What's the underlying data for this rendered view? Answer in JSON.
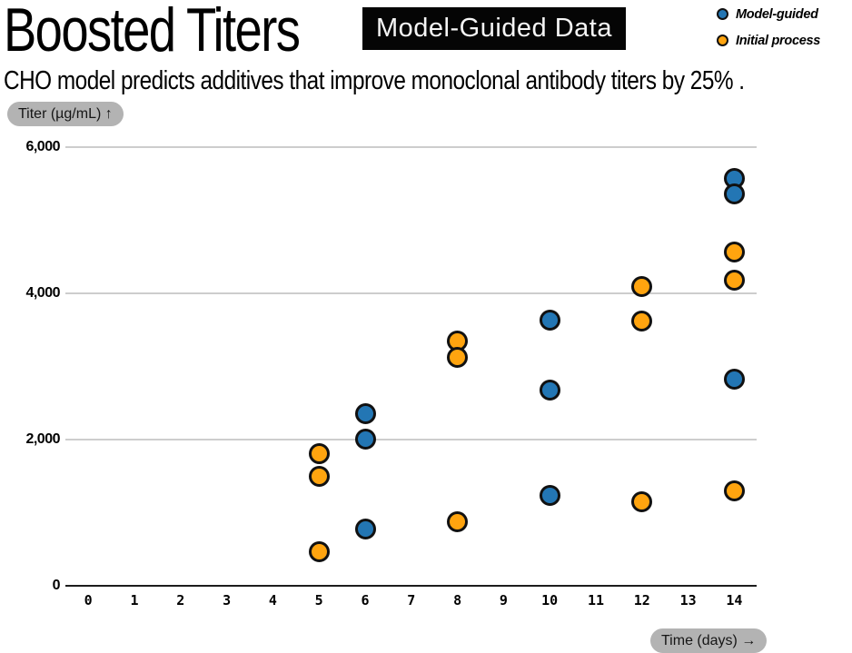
{
  "header": {
    "title": "Boosted Titers",
    "badge": "Model-Guided Data",
    "subtitle": "CHO model predicts additives that improve monoclonal antibody titers by 25% ."
  },
  "axes": {
    "y_label_pill": "Titer (µg/mL) ↑",
    "x_label_pill": "Time (days) →"
  },
  "colors": {
    "model_guided": "#2376B4",
    "initial_process": "#FFA40F",
    "badge_bg": "#050505",
    "pill_bg": "#B3B3B3",
    "gridline": "#CDCDCD",
    "axis_line": "#1C1C1C"
  },
  "chart_data": {
    "type": "scatter",
    "title": "Boosted Titers",
    "xlabel": "Time (days)",
    "ylabel": "Titer (µg/mL)",
    "xlim": [
      0,
      14
    ],
    "ylim": [
      0,
      6000
    ],
    "grid": "horizontal",
    "legend_position": "top-right",
    "x_ticks": [
      "0",
      "1",
      "2",
      "3",
      "4",
      "5",
      "6",
      "7",
      "8",
      "9",
      "10",
      "11",
      "12",
      "13",
      "14"
    ],
    "y_ticks": {
      "values": [
        0,
        2000,
        4000,
        6000
      ],
      "labels": [
        "0",
        "2,000",
        "4,000",
        "6,000"
      ]
    },
    "series": [
      {
        "name": "Model-guided",
        "color": "#2376B4",
        "points": [
          {
            "day": 6,
            "titer": 2350
          },
          {
            "day": 6,
            "titer": 2000
          },
          {
            "day": 6,
            "titer": 770
          },
          {
            "day": 10,
            "titer": 3630
          },
          {
            "day": 10,
            "titer": 2670
          },
          {
            "day": 10,
            "titer": 1240
          },
          {
            "day": 14,
            "titer": 5570
          },
          {
            "day": 14,
            "titer": 5360
          },
          {
            "day": 14,
            "titer": 2820
          }
        ]
      },
      {
        "name": "Initial process",
        "color": "#FFA40F",
        "points": [
          {
            "day": 5,
            "titer": 1810
          },
          {
            "day": 5,
            "titer": 1490
          },
          {
            "day": 5,
            "titer": 470
          },
          {
            "day": 8,
            "titer": 3340
          },
          {
            "day": 8,
            "titer": 3120
          },
          {
            "day": 8,
            "titer": 870
          },
          {
            "day": 12,
            "titer": 4090
          },
          {
            "day": 12,
            "titer": 3620
          },
          {
            "day": 12,
            "titer": 1150
          },
          {
            "day": 14,
            "titer": 4560
          },
          {
            "day": 14,
            "titer": 4170
          },
          {
            "day": 14,
            "titer": 1300
          }
        ]
      }
    ]
  }
}
